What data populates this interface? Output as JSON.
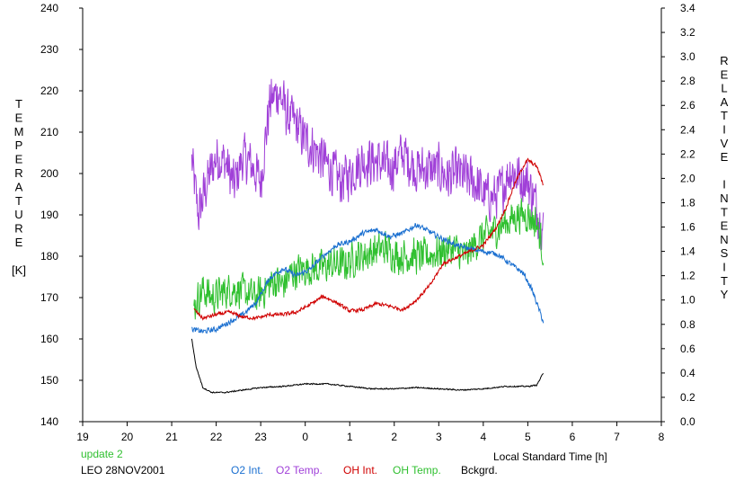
{
  "colors": {
    "o2_int": "#1a6fd0",
    "o2_temp": "#a040d8",
    "oh_int": "#d00000",
    "oh_temp": "#30c030",
    "bckgrd": "#000000",
    "update": "#30c030"
  },
  "info": {
    "update": "update 2",
    "station": "LEO 28NOV2001"
  },
  "legend": [
    {
      "key": "o2_int",
      "label": "O2 Int."
    },
    {
      "key": "o2_temp",
      "label": "O2 Temp."
    },
    {
      "key": "oh_int",
      "label": "OH Int."
    },
    {
      "key": "oh_temp",
      "label": "OH Temp."
    },
    {
      "key": "bckgrd",
      "label": "Bckgrd."
    }
  ],
  "chart_data": {
    "type": "line",
    "xlabel": "Local Standard Time [h]",
    "ylabel_left": [
      "T",
      "E",
      "M",
      "P",
      "E",
      "R",
      "A",
      "T",
      "U",
      "R",
      "E",
      "",
      "[K]"
    ],
    "ylabel_right": [
      "R",
      "E",
      "L",
      "A",
      "T",
      "I",
      "V",
      "E",
      "",
      "I",
      "N",
      "T",
      "E",
      "N",
      "S",
      "I",
      "T",
      "Y"
    ],
    "x_ticks": [
      "19",
      "20",
      "21",
      "22",
      "23",
      "0",
      "1",
      "2",
      "3",
      "4",
      "5",
      "6",
      "7",
      "8"
    ],
    "y_left_ticks": [
      "140",
      "150",
      "160",
      "170",
      "180",
      "190",
      "200",
      "210",
      "220",
      "230",
      "240"
    ],
    "y_right_ticks": [
      "0.0",
      "0.2",
      "0.4",
      "0.6",
      "0.8",
      "1.0",
      "1.2",
      "1.4",
      "1.6",
      "1.8",
      "2.0",
      "2.2",
      "2.4",
      "2.6",
      "2.8",
      "3.0",
      "3.2",
      "3.4"
    ],
    "xlim": [
      19,
      32
    ],
    "ylim_left": [
      140,
      240
    ],
    "ylim_right": [
      0,
      3.4
    ],
    "series": [
      {
        "name": "O2 Temp.",
        "key": "o2_temp",
        "axis": "left",
        "noise": 7,
        "x": [
          21.45,
          21.6,
          21.8,
          22.0,
          22.2,
          22.4,
          22.6,
          22.8,
          23.0,
          23.2,
          23.4,
          23.6,
          23.8,
          24.0,
          24.2,
          24.5,
          24.8,
          25.0,
          25.3,
          25.6,
          25.9,
          26.2,
          26.5,
          26.8,
          27.0,
          27.2,
          27.4,
          27.6,
          27.8,
          28.0,
          28.2,
          28.4,
          28.6,
          28.8,
          29.0,
          29.2,
          29.35
        ],
        "y": [
          203,
          190,
          198,
          204,
          203,
          197,
          204,
          202,
          198,
          217,
          220,
          214,
          212,
          208,
          206,
          202,
          198,
          200,
          203,
          203,
          201,
          205,
          201,
          201,
          201,
          199,
          200,
          199,
          198,
          195,
          194,
          196,
          201,
          199,
          198,
          192,
          186
        ]
      },
      {
        "name": "OH Temp.",
        "key": "oh_temp",
        "axis": "left",
        "noise": 5,
        "x": [
          21.5,
          21.7,
          21.9,
          22.1,
          22.3,
          22.5,
          22.7,
          22.9,
          23.1,
          23.3,
          23.5,
          23.7,
          24.0,
          24.3,
          24.6,
          24.9,
          25.2,
          25.5,
          25.8,
          26.1,
          26.4,
          26.7,
          27.0,
          27.3,
          27.6,
          27.9,
          28.2,
          28.5,
          28.8,
          29.0,
          29.2,
          29.35
        ],
        "y": [
          168,
          172,
          170,
          171,
          172,
          172,
          171,
          170,
          172,
          174,
          173,
          176,
          177,
          177,
          178,
          178,
          180,
          181,
          182,
          180,
          180,
          180,
          181,
          182,
          180,
          184,
          186,
          188,
          190,
          190,
          188,
          181
        ]
      },
      {
        "name": "O2 Int.",
        "key": "o2_int",
        "axis": "right",
        "noise": 0.025,
        "x": [
          21.45,
          21.7,
          22.0,
          22.3,
          22.6,
          22.9,
          23.2,
          23.5,
          23.8,
          24.1,
          24.4,
          24.7,
          25.0,
          25.3,
          25.6,
          25.9,
          26.2,
          26.5,
          26.8,
          27.1,
          27.4,
          27.7,
          28.0,
          28.3,
          28.6,
          28.9,
          29.1,
          29.35
        ],
        "y": [
          0.76,
          0.74,
          0.76,
          0.82,
          0.88,
          0.98,
          1.18,
          1.26,
          1.2,
          1.25,
          1.36,
          1.45,
          1.48,
          1.55,
          1.58,
          1.52,
          1.55,
          1.62,
          1.56,
          1.5,
          1.45,
          1.42,
          1.4,
          1.38,
          1.3,
          1.22,
          1.08,
          0.82
        ]
      },
      {
        "name": "OH Int.",
        "key": "oh_int",
        "axis": "right",
        "noise": 0.018,
        "x": [
          21.5,
          21.7,
          22.0,
          22.3,
          22.6,
          22.9,
          23.2,
          23.5,
          23.8,
          24.1,
          24.4,
          24.7,
          25.0,
          25.3,
          25.6,
          25.9,
          26.2,
          26.5,
          26.8,
          27.1,
          27.4,
          27.7,
          28.0,
          28.3,
          28.5,
          28.7,
          28.9,
          29.0,
          29.2,
          29.35
        ],
        "y": [
          0.92,
          0.85,
          0.88,
          0.9,
          0.86,
          0.85,
          0.88,
          0.88,
          0.9,
          0.96,
          1.03,
          0.98,
          0.91,
          0.92,
          0.97,
          0.95,
          0.92,
          1.0,
          1.12,
          1.3,
          1.35,
          1.4,
          1.45,
          1.6,
          1.75,
          1.95,
          2.1,
          2.15,
          2.1,
          1.95
        ]
      },
      {
        "name": "Bckgrd.",
        "key": "bckgrd",
        "axis": "right",
        "noise": 0.006,
        "x": [
          21.45,
          21.55,
          21.7,
          21.9,
          22.2,
          22.6,
          23.0,
          23.5,
          24.0,
          24.5,
          25.0,
          25.5,
          26.0,
          26.5,
          27.0,
          27.5,
          28.0,
          28.5,
          29.0,
          29.2,
          29.35
        ],
        "y": [
          0.68,
          0.45,
          0.28,
          0.24,
          0.24,
          0.26,
          0.28,
          0.29,
          0.31,
          0.31,
          0.29,
          0.27,
          0.27,
          0.28,
          0.27,
          0.26,
          0.27,
          0.29,
          0.29,
          0.3,
          0.4
        ]
      }
    ]
  }
}
